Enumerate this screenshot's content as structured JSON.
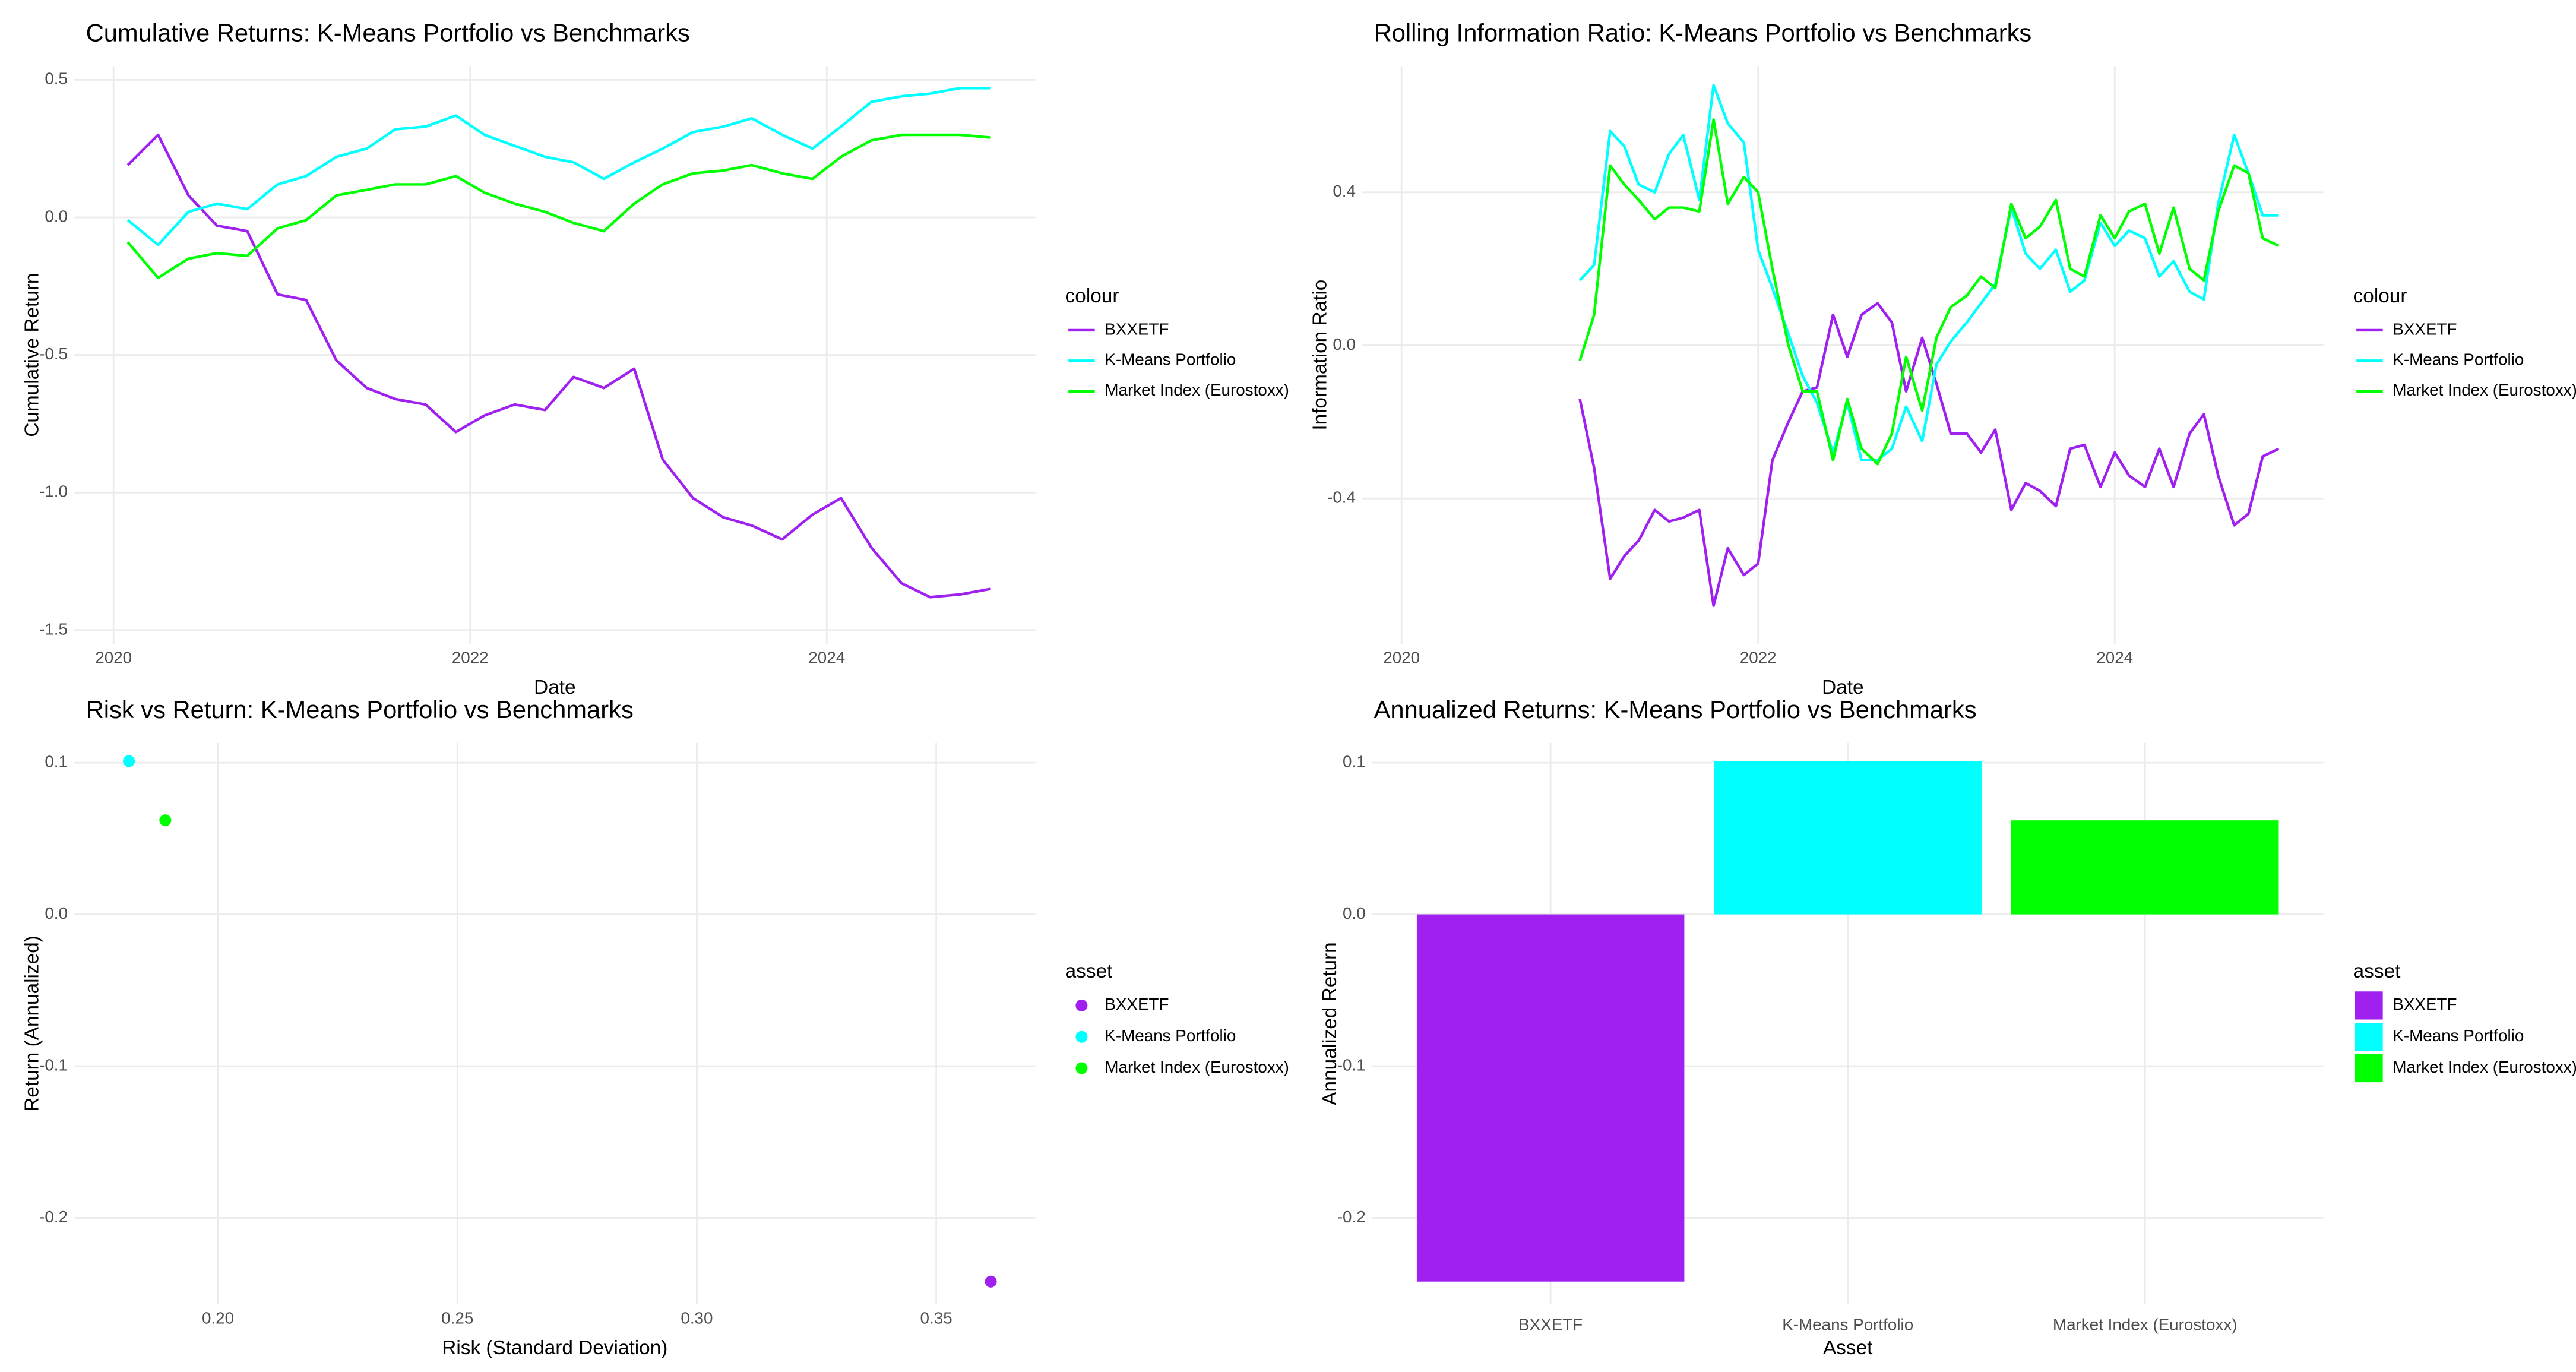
{
  "chart_data": [
    {
      "type": "line",
      "title": "Cumulative Returns: K-Means Portfolio vs Benchmarks",
      "x_label": "Date",
      "y_label": "Cumulative Return",
      "legend_title": "colour",
      "x": [
        2020.08,
        2020.25,
        2020.42,
        2020.58,
        2020.75,
        2020.92,
        2021.08,
        2021.25,
        2021.42,
        2021.58,
        2021.75,
        2021.92,
        2022.08,
        2022.25,
        2022.42,
        2022.58,
        2022.75,
        2022.92,
        2023.08,
        2023.25,
        2023.42,
        2023.58,
        2023.75,
        2023.92,
        2024.08,
        2024.25,
        2024.42,
        2024.58,
        2024.75,
        2024.92
      ],
      "series": [
        {
          "name": "BXXETF",
          "color": "#a020f0",
          "values": [
            0.19,
            0.3,
            0.08,
            -0.03,
            -0.05,
            -0.28,
            -0.3,
            -0.52,
            -0.62,
            -0.66,
            -0.68,
            -0.78,
            -0.72,
            -0.68,
            -0.7,
            -0.58,
            -0.62,
            -0.55,
            -0.88,
            -1.02,
            -1.09,
            -1.12,
            -1.17,
            -1.08,
            -1.02,
            -1.2,
            -1.33,
            -1.38,
            -1.37,
            -1.35
          ]
        },
        {
          "name": "K-Means Portfolio",
          "color": "#00ffff",
          "values": [
            -0.01,
            -0.1,
            0.02,
            0.05,
            0.03,
            0.12,
            0.15,
            0.22,
            0.25,
            0.32,
            0.33,
            0.37,
            0.3,
            0.26,
            0.22,
            0.2,
            0.14,
            0.2,
            0.25,
            0.31,
            0.33,
            0.36,
            0.3,
            0.25,
            0.33,
            0.42,
            0.44,
            0.45,
            0.47,
            0.47
          ]
        },
        {
          "name": "Market Index (Eurostoxx)",
          "color": "#00ff00",
          "values": [
            -0.09,
            -0.22,
            -0.15,
            -0.13,
            -0.14,
            -0.04,
            -0.01,
            0.08,
            0.1,
            0.12,
            0.12,
            0.15,
            0.09,
            0.05,
            0.02,
            -0.02,
            -0.05,
            0.05,
            0.12,
            0.16,
            0.17,
            0.19,
            0.16,
            0.14,
            0.22,
            0.28,
            0.3,
            0.3,
            0.3,
            0.29
          ]
        }
      ],
      "xlim": [
        2019.78,
        2025.17
      ],
      "xticks": [
        2020,
        2022,
        2024
      ],
      "ylim": [
        -1.55,
        0.55
      ],
      "yticks": [
        0.5,
        {
          "value": 0,
          "label": "0.0"
        },
        -0.5,
        {
          "value": -1,
          "label": "-1.0"
        },
        -1.5
      ],
      "grid": true
    },
    {
      "type": "line",
      "title": "Rolling Information Ratio: K-Means Portfolio vs Benchmarks",
      "x_label": "Date",
      "y_label": "Information Ratio",
      "legend_title": "colour",
      "x": [
        2021.0,
        2021.08,
        2021.17,
        2021.25,
        2021.33,
        2021.42,
        2021.5,
        2021.58,
        2021.67,
        2021.75,
        2021.83,
        2021.92,
        2022.0,
        2022.08,
        2022.17,
        2022.25,
        2022.33,
        2022.42,
        2022.5,
        2022.58,
        2022.67,
        2022.75,
        2022.83,
        2022.92,
        2023.0,
        2023.08,
        2023.17,
        2023.25,
        2023.33,
        2023.42,
        2023.5,
        2023.58,
        2023.67,
        2023.75,
        2023.83,
        2023.92,
        2024.0,
        2024.08,
        2024.17,
        2024.25,
        2024.33,
        2024.42,
        2024.5,
        2024.58,
        2024.67,
        2024.75,
        2024.83,
        2024.92
      ],
      "series": [
        {
          "name": "BXXETF",
          "color": "#a020f0",
          "values": [
            -0.14,
            -0.32,
            -0.61,
            -0.55,
            -0.51,
            -0.43,
            -0.46,
            -0.45,
            -0.43,
            -0.68,
            -0.53,
            -0.6,
            -0.57,
            -0.3,
            -0.2,
            -0.12,
            -0.11,
            0.08,
            -0.03,
            0.08,
            0.11,
            0.06,
            -0.12,
            0.02,
            -0.1,
            -0.23,
            -0.23,
            -0.28,
            -0.22,
            -0.43,
            -0.36,
            -0.38,
            -0.42,
            -0.27,
            -0.26,
            -0.37,
            -0.28,
            -0.34,
            -0.37,
            -0.27,
            -0.37,
            -0.23,
            -0.18,
            -0.34,
            -0.47,
            -0.44,
            -0.29,
            -0.27
          ]
        },
        {
          "name": "K-Means Portfolio",
          "color": "#00ffff",
          "values": [
            0.17,
            0.21,
            0.56,
            0.52,
            0.42,
            0.4,
            0.5,
            0.55,
            0.38,
            0.68,
            0.58,
            0.53,
            0.25,
            0.15,
            0.03,
            -0.08,
            -0.15,
            -0.28,
            -0.15,
            -0.3,
            -0.3,
            -0.27,
            -0.16,
            -0.25,
            -0.05,
            0.01,
            0.06,
            0.11,
            0.16,
            0.36,
            0.24,
            0.2,
            0.25,
            0.14,
            0.17,
            0.32,
            0.26,
            0.3,
            0.28,
            0.18,
            0.22,
            0.14,
            0.12,
            0.37,
            0.55,
            0.45,
            0.34,
            0.34
          ]
        },
        {
          "name": "Market Index (Eurostoxx)",
          "color": "#00ff00",
          "values": [
            -0.04,
            0.08,
            0.47,
            0.42,
            0.38,
            0.33,
            0.36,
            0.36,
            0.35,
            0.59,
            0.37,
            0.44,
            0.4,
            0.2,
            0.0,
            -0.12,
            -0.12,
            -0.3,
            -0.14,
            -0.27,
            -0.31,
            -0.23,
            -0.03,
            -0.17,
            0.02,
            0.1,
            0.13,
            0.18,
            0.15,
            0.37,
            0.28,
            0.31,
            0.38,
            0.2,
            0.18,
            0.34,
            0.28,
            0.35,
            0.37,
            0.24,
            0.36,
            0.2,
            0.17,
            0.35,
            0.47,
            0.45,
            0.28,
            0.26
          ]
        }
      ],
      "xlim": [
        2019.78,
        2025.17
      ],
      "xticks": [
        2020,
        2022,
        2024
      ],
      "ylim": [
        -0.78,
        0.73
      ],
      "yticks": [
        0.4,
        {
          "value": 0,
          "label": "0.0"
        },
        -0.4
      ],
      "grid": true
    },
    {
      "type": "scatter",
      "title": "Risk vs Return: K-Means Portfolio vs Benchmarks",
      "x_label": "Risk (Standard Deviation)",
      "y_label": "Return (Annualized)",
      "legend_title": "asset",
      "series": [
        {
          "name": "BXXETF",
          "color": "#a020f0",
          "x": [
            0.3614
          ],
          "values": [
            -0.242
          ]
        },
        {
          "name": "K-Means Portfolio",
          "color": "#00ffff",
          "x": [
            0.1814
          ],
          "values": [
            0.101
          ]
        },
        {
          "name": "Market Index (Eurostoxx)",
          "color": "#00ff00",
          "x": [
            0.189
          ],
          "values": [
            0.062
          ]
        }
      ],
      "xlim": [
        0.17,
        0.3707
      ],
      "xticks": [
        {
          "value": 0.2,
          "label": "0.20"
        },
        0.25,
        {
          "value": 0.3,
          "label": "0.30"
        },
        0.35
      ],
      "ylim": [
        -0.257,
        0.113
      ],
      "yticks": [
        0.1,
        {
          "value": 0,
          "label": "0.0"
        },
        -0.1,
        -0.2
      ],
      "grid": true
    },
    {
      "type": "bar",
      "title": "Annualized Returns: K-Means Portfolio vs Benchmarks",
      "x_label": "Asset",
      "y_label": "Annualized Return",
      "legend_title": "asset",
      "categories": [
        "BXXETF",
        "K-Means Portfolio",
        "Market Index (Eurostoxx)"
      ],
      "values": [
        -0.242,
        0.101,
        0.062
      ],
      "colors": [
        "#a020f0",
        "#00ffff",
        "#00ff00"
      ],
      "ylim": [
        -0.257,
        0.113
      ],
      "yticks": [
        0.1,
        {
          "value": 0,
          "label": "0.0"
        },
        -0.1,
        -0.2
      ],
      "grid": true
    }
  ]
}
